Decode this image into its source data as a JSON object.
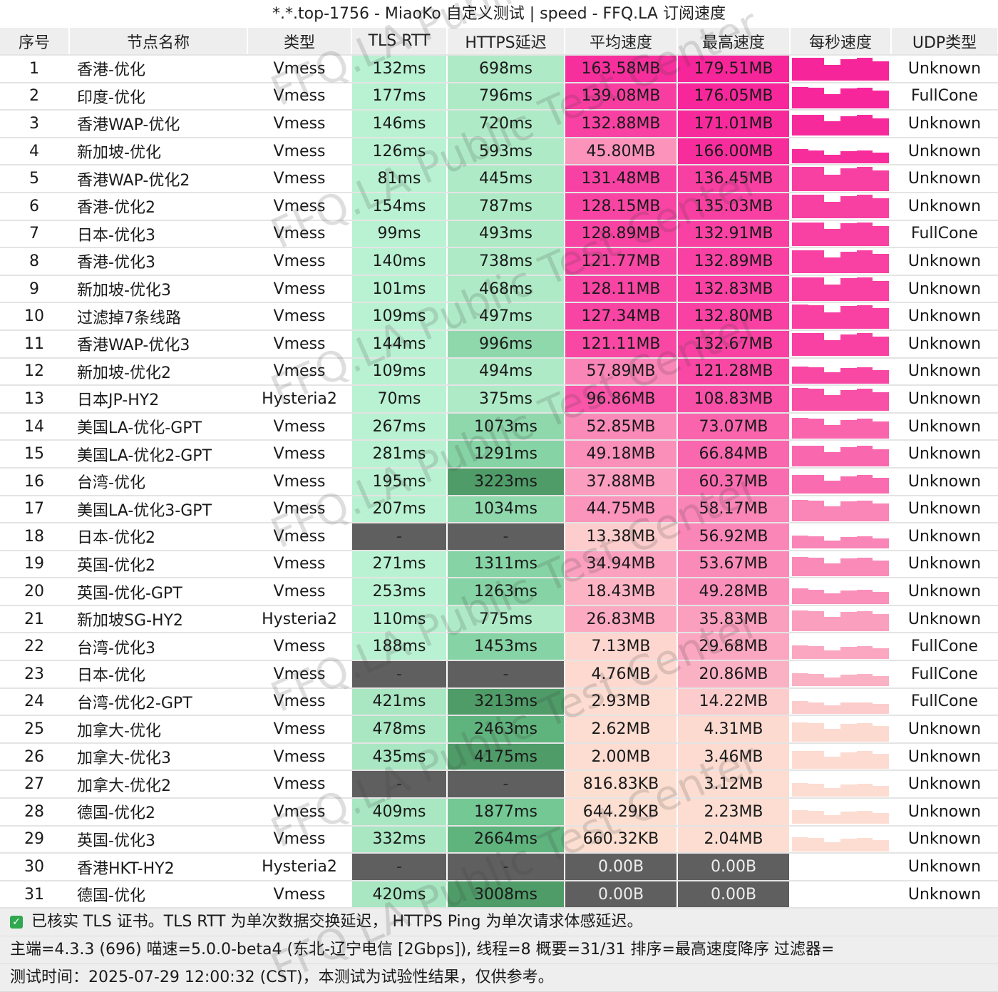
{
  "title": "*.*.top-1756 - MiaoKo 自定义测试 | speed - FFQ.LA 订阅速度",
  "watermark": "FFQ.LA Public Test Center",
  "colors": {
    "tls_na": "#5f5f5f",
    "speed_zero": "#5f5f5f",
    "header_bg": "#eeeeee"
  },
  "columns": [
    "序号",
    "节点名称",
    "类型",
    "TLS RTT",
    "HTTPS延迟",
    "平均速度",
    "最高速度",
    "每秒速度",
    "UDP类型"
  ],
  "rows": [
    {
      "idx": "1",
      "name": "香港-优化",
      "type": "Vmess",
      "tls": "132ms",
      "https": "698ms",
      "avg": "163.58MB",
      "max": "179.51MB",
      "udp": "Unknown"
    },
    {
      "idx": "2",
      "name": "印度-优化",
      "type": "Vmess",
      "tls": "177ms",
      "https": "796ms",
      "avg": "139.08MB",
      "max": "176.05MB",
      "udp": "FullCone"
    },
    {
      "idx": "3",
      "name": "香港WAP-优化",
      "type": "Vmess",
      "tls": "146ms",
      "https": "720ms",
      "avg": "132.88MB",
      "max": "171.01MB",
      "udp": "Unknown"
    },
    {
      "idx": "4",
      "name": "新加坡-优化",
      "type": "Vmess",
      "tls": "126ms",
      "https": "593ms",
      "avg": "45.80MB",
      "max": "166.00MB",
      "udp": "Unknown"
    },
    {
      "idx": "5",
      "name": "香港WAP-优化2",
      "type": "Vmess",
      "tls": "81ms",
      "https": "445ms",
      "avg": "131.48MB",
      "max": "136.45MB",
      "udp": "Unknown"
    },
    {
      "idx": "6",
      "name": "香港-优化2",
      "type": "Vmess",
      "tls": "154ms",
      "https": "787ms",
      "avg": "128.15MB",
      "max": "135.03MB",
      "udp": "Unknown"
    },
    {
      "idx": "7",
      "name": "日本-优化3",
      "type": "Vmess",
      "tls": "99ms",
      "https": "493ms",
      "avg": "128.89MB",
      "max": "132.91MB",
      "udp": "FullCone"
    },
    {
      "idx": "8",
      "name": "香港-优化3",
      "type": "Vmess",
      "tls": "140ms",
      "https": "738ms",
      "avg": "121.77MB",
      "max": "132.89MB",
      "udp": "Unknown"
    },
    {
      "idx": "9",
      "name": "新加坡-优化3",
      "type": "Vmess",
      "tls": "101ms",
      "https": "468ms",
      "avg": "128.11MB",
      "max": "132.83MB",
      "udp": "Unknown"
    },
    {
      "idx": "10",
      "name": "过滤掉7条线路",
      "type": "Vmess",
      "tls": "109ms",
      "https": "497ms",
      "avg": "127.34MB",
      "max": "132.80MB",
      "udp": "Unknown"
    },
    {
      "idx": "11",
      "name": "香港WAP-优化3",
      "type": "Vmess",
      "tls": "144ms",
      "https": "996ms",
      "avg": "121.11MB",
      "max": "132.67MB",
      "udp": "Unknown"
    },
    {
      "idx": "12",
      "name": "新加坡-优化2",
      "type": "Vmess",
      "tls": "109ms",
      "https": "494ms",
      "avg": "57.89MB",
      "max": "121.28MB",
      "udp": "Unknown"
    },
    {
      "idx": "13",
      "name": "日本JP-HY2",
      "type": "Hysteria2",
      "tls": "70ms",
      "https": "375ms",
      "avg": "96.86MB",
      "max": "108.83MB",
      "udp": "Unknown"
    },
    {
      "idx": "14",
      "name": "美国LA-优化-GPT",
      "type": "Vmess",
      "tls": "267ms",
      "https": "1073ms",
      "avg": "52.85MB",
      "max": "73.07MB",
      "udp": "Unknown"
    },
    {
      "idx": "15",
      "name": "美国LA-优化2-GPT",
      "type": "Vmess",
      "tls": "281ms",
      "https": "1291ms",
      "avg": "49.18MB",
      "max": "66.84MB",
      "udp": "Unknown"
    },
    {
      "idx": "16",
      "name": "台湾-优化",
      "type": "Vmess",
      "tls": "195ms",
      "https": "3223ms",
      "avg": "37.88MB",
      "max": "60.37MB",
      "udp": "Unknown"
    },
    {
      "idx": "17",
      "name": "美国LA-优化3-GPT",
      "type": "Vmess",
      "tls": "207ms",
      "https": "1034ms",
      "avg": "44.75MB",
      "max": "58.17MB",
      "udp": "Unknown"
    },
    {
      "idx": "18",
      "name": "日本-优化2",
      "type": "Vmess",
      "tls": "-",
      "https": "-",
      "avg": "13.38MB",
      "max": "56.92MB",
      "udp": "Unknown"
    },
    {
      "idx": "19",
      "name": "英国-优化2",
      "type": "Vmess",
      "tls": "271ms",
      "https": "1311ms",
      "avg": "34.94MB",
      "max": "53.67MB",
      "udp": "Unknown"
    },
    {
      "idx": "20",
      "name": "英国-优化-GPT",
      "type": "Vmess",
      "tls": "253ms",
      "https": "1263ms",
      "avg": "18.43MB",
      "max": "49.28MB",
      "udp": "Unknown"
    },
    {
      "idx": "21",
      "name": "新加坡SG-HY2",
      "type": "Hysteria2",
      "tls": "110ms",
      "https": "775ms",
      "avg": "26.83MB",
      "max": "35.83MB",
      "udp": "Unknown"
    },
    {
      "idx": "22",
      "name": "台湾-优化3",
      "type": "Vmess",
      "tls": "188ms",
      "https": "1453ms",
      "avg": "7.13MB",
      "max": "29.68MB",
      "udp": "FullCone"
    },
    {
      "idx": "23",
      "name": "日本-优化",
      "type": "Vmess",
      "tls": "-",
      "https": "-",
      "avg": "4.76MB",
      "max": "20.86MB",
      "udp": "FullCone"
    },
    {
      "idx": "24",
      "name": "台湾-优化2-GPT",
      "type": "Vmess",
      "tls": "421ms",
      "https": "3213ms",
      "avg": "2.93MB",
      "max": "14.22MB",
      "udp": "FullCone"
    },
    {
      "idx": "25",
      "name": "加拿大-优化",
      "type": "Vmess",
      "tls": "478ms",
      "https": "2463ms",
      "avg": "2.62MB",
      "max": "4.31MB",
      "udp": "Unknown"
    },
    {
      "idx": "26",
      "name": "加拿大-优化3",
      "type": "Vmess",
      "tls": "435ms",
      "https": "4175ms",
      "avg": "2.00MB",
      "max": "3.46MB",
      "udp": "Unknown"
    },
    {
      "idx": "27",
      "name": "加拿大-优化2",
      "type": "Vmess",
      "tls": "-",
      "https": "-",
      "avg": "816.83KB",
      "max": "3.12MB",
      "udp": "Unknown"
    },
    {
      "idx": "28",
      "name": "德国-优化2",
      "type": "Vmess",
      "tls": "409ms",
      "https": "1877ms",
      "avg": "644.29KB",
      "max": "2.23MB",
      "udp": "Unknown"
    },
    {
      "idx": "29",
      "name": "英国-优化3",
      "type": "Vmess",
      "tls": "332ms",
      "https": "2664ms",
      "avg": "660.32KB",
      "max": "2.04MB",
      "udp": "Unknown"
    },
    {
      "idx": "30",
      "name": "香港HKT-HY2",
      "type": "Hysteria2",
      "tls": "-",
      "https": "-",
      "avg": "0.00B",
      "max": "0.00B",
      "udp": "Unknown"
    },
    {
      "idx": "31",
      "name": "德国-优化",
      "type": "Vmess",
      "tls": "420ms",
      "https": "3008ms",
      "avg": "0.00B",
      "max": "0.00B",
      "udp": "Unknown"
    }
  ],
  "footer": {
    "line1": "已核实 TLS 证书。TLS RTT 为单次数据交换延迟， HTTPS Ping 为单次请求体感延迟。",
    "line2": "主端=4.3.3 (696) 喵速=5.0.0-beta4 (东北-辽宁电信 [2Gbps]), 线程=8 概要=31/31 排序=最高速度降序 过滤器=",
    "line3": "测试时间：2025-07-29 12:00:32 (CST)，本测试为试验性结果，仅供参考。"
  }
}
